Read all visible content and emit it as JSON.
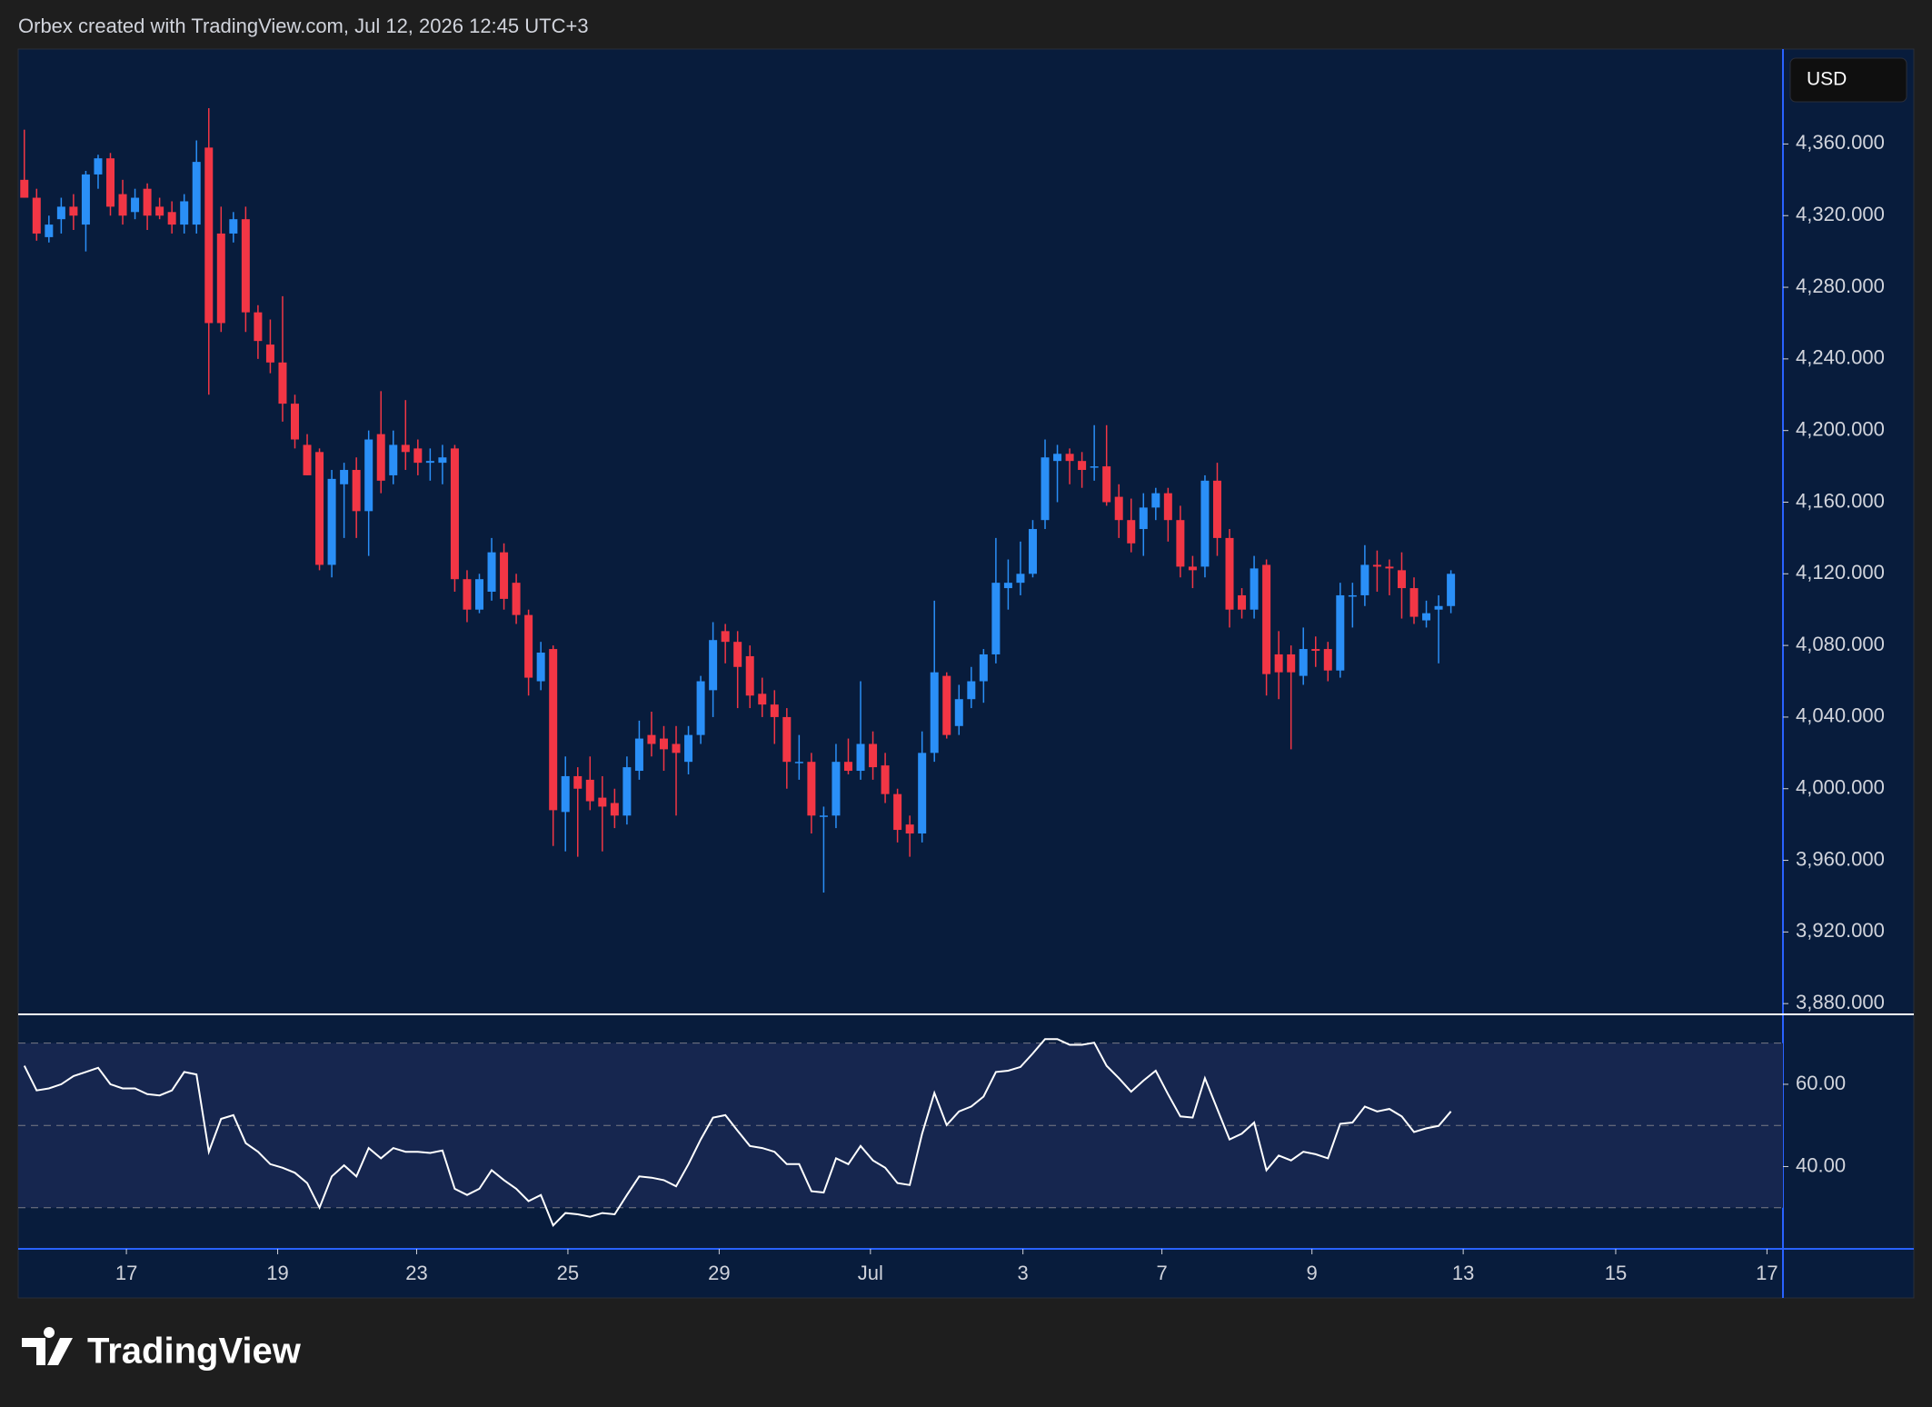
{
  "header": {
    "text": "Orbex created with TradingView.com, Jul 12, 2026 12:45 UTC+3"
  },
  "currency": "USD",
  "footer": {
    "brand": "TradingView"
  },
  "chart_data": [
    {
      "type": "candlestick",
      "up_color": "#2a8ff7",
      "down_color": "#f23645",
      "open": [
        4340,
        4330,
        4308,
        4318,
        4325,
        4315,
        4343,
        4352,
        4332,
        4322,
        4335,
        4325,
        4322,
        4315,
        4315,
        4358,
        4310,
        4310,
        4318,
        4266,
        4248,
        4238,
        4215,
        4192,
        4188,
        4125,
        4170,
        4178,
        4155,
        4198,
        4175,
        4192,
        4190,
        4182,
        4182,
        4190,
        4117,
        4100,
        4110,
        4132,
        4115,
        4097,
        4060,
        4078,
        3987,
        4007,
        4005,
        3995,
        3992,
        3985,
        4010,
        4030,
        4028,
        4025,
        4015,
        4030,
        4055,
        4088,
        4082,
        4074,
        4053,
        4047,
        4040,
        4015,
        4015,
        3985,
        3985,
        4015,
        4010,
        4025,
        4013,
        3997,
        3980,
        3975,
        4020,
        4063,
        4035,
        4050,
        4060,
        4075,
        4112,
        4115,
        4120,
        4150,
        4183,
        4187,
        4183,
        4180,
        4180,
        4163,
        4150,
        4145,
        4157,
        4165,
        4150,
        4124,
        4124,
        4172,
        4140,
        4108,
        4100,
        4125,
        4075,
        4075,
        4063,
        4078,
        4078,
        4066,
        4108,
        4108,
        4125,
        4124,
        4122,
        4112,
        4094,
        4100,
        4102
      ],
      "high": [
        4368,
        4335,
        4320,
        4330,
        4332,
        4345,
        4354,
        4355,
        4340,
        4335,
        4338,
        4330,
        4328,
        4332,
        4362,
        4380,
        4325,
        4322,
        4325,
        4270,
        4262,
        4275,
        4220,
        4198,
        4190,
        4178,
        4182,
        4185,
        4200,
        4222,
        4200,
        4217,
        4195,
        4190,
        4192,
        4192,
        4122,
        4120,
        4140,
        4137,
        4120,
        4100,
        4082,
        4080,
        4018,
        4012,
        4018,
        4007,
        4000,
        4018,
        4038,
        4043,
        4035,
        4035,
        4035,
        4063,
        4093,
        4092,
        4088,
        4080,
        4062,
        4055,
        4045,
        4030,
        4020,
        3990,
        4025,
        4028,
        4060,
        4032,
        4020,
        4000,
        3985,
        4032,
        4105,
        4065,
        4058,
        4068,
        4078,
        4140,
        4128,
        4138,
        4150,
        4195,
        4192,
        4190,
        4188,
        4203,
        4203,
        4170,
        4162,
        4165,
        4168,
        4168,
        4158,
        4130,
        4175,
        4182,
        4145,
        4112,
        4130,
        4128,
        4088,
        4080,
        4090,
        4085,
        4082,
        4115,
        4115,
        4136,
        4133,
        4128,
        4132,
        4118,
        4105,
        4108,
        4122
      ],
      "low": [
        4330,
        4306,
        4305,
        4310,
        4312,
        4300,
        4335,
        4320,
        4315,
        4318,
        4312,
        4318,
        4310,
        4310,
        4310,
        4220,
        4255,
        4305,
        4255,
        4240,
        4232,
        4205,
        4190,
        4175,
        4122,
        4118,
        4140,
        4140,
        4130,
        4165,
        4170,
        4178,
        4175,
        4172,
        4170,
        4110,
        4093,
        4098,
        4105,
        4100,
        4092,
        4052,
        4055,
        3968,
        3965,
        3962,
        3988,
        3965,
        3978,
        3980,
        4005,
        4018,
        4010,
        3985,
        4008,
        4025,
        4040,
        4070,
        4045,
        4045,
        4040,
        4025,
        4000,
        4005,
        3975,
        3942,
        3978,
        4008,
        4005,
        4005,
        3992,
        3970,
        3962,
        3970,
        4015,
        4028,
        4030,
        4045,
        4048,
        4070,
        4100,
        4108,
        4118,
        4145,
        4160,
        4170,
        4168,
        4172,
        4158,
        4140,
        4132,
        4130,
        4150,
        4138,
        4118,
        4112,
        4118,
        4130,
        4090,
        4095,
        4095,
        4052,
        4050,
        4022,
        4058,
        4068,
        4060,
        4062,
        4090,
        4102,
        4110,
        4108,
        4095,
        4092,
        4090,
        4070,
        4098
      ],
      "close": [
        4330,
        4310,
        4315,
        4325,
        4320,
        4343,
        4352,
        4325,
        4320,
        4330,
        4320,
        4320,
        4315,
        4328,
        4350,
        4260,
        4260,
        4318,
        4266,
        4250,
        4238,
        4215,
        4195,
        4175,
        4125,
        4173,
        4178,
        4155,
        4195,
        4172,
        4192,
        4188,
        4182,
        4183,
        4185,
        4117,
        4100,
        4117,
        4132,
        4106,
        4097,
        4062,
        4076,
        3988,
        4007,
        4000,
        3993,
        3990,
        3985,
        4012,
        4028,
        4025,
        4022,
        4020,
        4030,
        4060,
        4083,
        4082,
        4068,
        4052,
        4047,
        4040,
        4015,
        4015,
        3985,
        3985,
        4015,
        4010,
        4025,
        4012,
        3997,
        3977,
        3975,
        4020,
        4065,
        4030,
        4050,
        4060,
        4075,
        4115,
        4115,
        4120,
        4145,
        4185,
        4187,
        4183,
        4178,
        4180,
        4160,
        4150,
        4137,
        4157,
        4165,
        4150,
        4124,
        4122,
        4172,
        4140,
        4100,
        4100,
        4123,
        4064,
        4065,
        4065,
        4078,
        4077,
        4066,
        4108,
        4108,
        4125,
        4124,
        4123,
        4112,
        4096,
        4098,
        4102,
        4120
      ],
      "xlim": [
        -0.5,
        143
      ],
      "xticks": [
        {
          "value": 8.3,
          "label": "17"
        },
        {
          "value": 20.6,
          "label": "19"
        },
        {
          "value": 31.9,
          "label": "23"
        },
        {
          "value": 44.2,
          "label": "25"
        },
        {
          "value": 56.5,
          "label": "29"
        },
        {
          "value": 68.8,
          "label": "Jul"
        },
        {
          "value": 81.2,
          "label": "3"
        },
        {
          "value": 92.5,
          "label": "7"
        },
        {
          "value": 104.7,
          "label": "9"
        },
        {
          "value": 117,
          "label": "13"
        },
        {
          "value": 129.4,
          "label": "15"
        },
        {
          "value": 141.7,
          "label": "17"
        }
      ],
      "ylim": [
        3874,
        4413
      ],
      "yticks": [
        {
          "value": 3880,
          "label": "3,880.000"
        },
        {
          "value": 3920,
          "label": "3,920.000"
        },
        {
          "value": 3960,
          "label": "3,960.000"
        },
        {
          "value": 4000,
          "label": "4,000.000"
        },
        {
          "value": 4040,
          "label": "4,040.000"
        },
        {
          "value": 4080,
          "label": "4,080.000"
        },
        {
          "value": 4120,
          "label": "4,120.000"
        },
        {
          "value": 4160,
          "label": "4,160.000"
        },
        {
          "value": 4200,
          "label": "4,200.000"
        },
        {
          "value": 4240,
          "label": "4,240.000"
        },
        {
          "value": 4280,
          "label": "4,280.000"
        },
        {
          "value": 4320,
          "label": "4,320.000"
        },
        {
          "value": 4360,
          "label": "4,360.000"
        }
      ]
    },
    {
      "type": "line",
      "color": "#ffffff",
      "band_color": "#16264f",
      "values": [
        64.5,
        58.5,
        59,
        60,
        62,
        63,
        64,
        60,
        59,
        59,
        57.6,
        57.3,
        58.5,
        63,
        62.4,
        43.6,
        51.6,
        52.5,
        45.7,
        43.6,
        40.6,
        39.7,
        38.5,
        36,
        30,
        37.6,
        40.3,
        37.6,
        44.5,
        42,
        44.5,
        43.6,
        43.6,
        43.3,
        43.9,
        34.6,
        33.1,
        34.6,
        39.1,
        36.7,
        34.6,
        31.6,
        33.1,
        25.7,
        28.7,
        28.4,
        27.8,
        28.7,
        28.4,
        33.1,
        37.6,
        37.3,
        36.7,
        35.2,
        40.6,
        46.6,
        51.9,
        52.5,
        48.7,
        45,
        44.5,
        43.6,
        40.6,
        40.6,
        34,
        33.7,
        42,
        40.6,
        45,
        41.5,
        39.7,
        36,
        35.5,
        48,
        57.9,
        50.1,
        53.4,
        54.6,
        57,
        63,
        63.3,
        64.2,
        67.5,
        71,
        71,
        69.6,
        69.6,
        70.1,
        64.5,
        61.5,
        58.2,
        60.9,
        63.3,
        57.6,
        52.2,
        51.9,
        61.5,
        54,
        46.6,
        48,
        50.7,
        39.1,
        42.7,
        41.5,
        43.6,
        43,
        42,
        50.4,
        50.7,
        54.6,
        53.4,
        54,
        52.2,
        48.4,
        49.3,
        49.9,
        53.4
      ],
      "levels": [
        30,
        50,
        70
      ],
      "ylim": [
        20,
        77
      ],
      "yticks": [
        {
          "value": 40,
          "label": "40.00"
        },
        {
          "value": 60,
          "label": "60.00"
        }
      ]
    }
  ]
}
